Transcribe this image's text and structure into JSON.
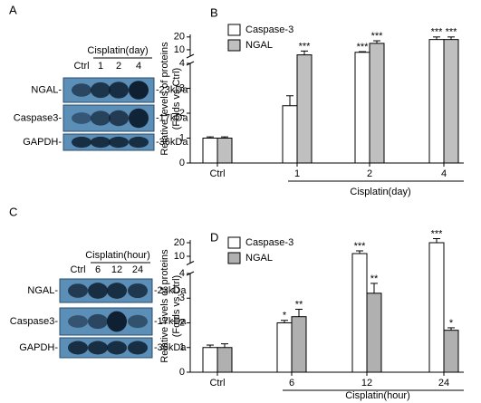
{
  "blots": [
    {
      "letter": "A",
      "treatment": "Cisplatin(day)",
      "lanes": [
        "Ctrl",
        "1",
        "2",
        "4"
      ],
      "rows": [
        {
          "label": "NGAL-",
          "size": "-23kDa"
        },
        {
          "label": "Caspase3-",
          "size": "-17kDa"
        },
        {
          "label": "GAPDH-",
          "size": "-36kDa"
        }
      ]
    },
    {
      "letter": "C",
      "treatment": "Cisplatin(hour)",
      "lanes": [
        "Ctrl",
        "6",
        "12",
        "24"
      ],
      "rows": [
        {
          "label": "NGAL-",
          "size": "-23kDa"
        },
        {
          "label": "Caspase3-",
          "size": "-17kDa"
        },
        {
          "label": "GAPDH-",
          "size": "-36kDa"
        }
      ]
    }
  ],
  "chart_data": [
    {
      "type": "bar",
      "letter": "B",
      "ylabel": [
        "Relative levels of proteins",
        "(Folds vs.Ctrl)"
      ],
      "xlabel": "Cisplatin(day)",
      "categories": [
        "Ctrl",
        "1",
        "2",
        "4"
      ],
      "ylim": [
        0,
        22
      ],
      "ybreak": [
        4,
        5
      ],
      "yticks": [
        0,
        1,
        2,
        3,
        4,
        10,
        20
      ],
      "series": [
        {
          "name": "Caspase-3",
          "color": "#ffffff",
          "values": [
            1.0,
            2.3,
            8,
            18
          ],
          "errors": [
            0.05,
            0.4,
            0.5,
            2
          ],
          "significance": [
            null,
            null,
            "***",
            "***"
          ]
        },
        {
          "name": "NGAL",
          "color": "#c0c0c0",
          "values": [
            1.0,
            6,
            15,
            18
          ],
          "errors": [
            0.05,
            3,
            2,
            2
          ],
          "significance": [
            null,
            "***",
            "***",
            "***"
          ]
        }
      ]
    },
    {
      "type": "bar",
      "letter": "D",
      "ylabel": [
        "Relative levels of proteins",
        "(Folds vs.Ctrl)"
      ],
      "xlabel": "Cisplatin(hour)",
      "categories": [
        "Ctrl",
        "6",
        "12",
        "24"
      ],
      "ylim": [
        0,
        22
      ],
      "ybreak": [
        4,
        5
      ],
      "yticks": [
        0,
        1,
        2,
        3,
        4,
        10,
        20
      ],
      "series": [
        {
          "name": "Caspase-3",
          "color": "#ffffff",
          "values": [
            1.0,
            2.0,
            12,
            20
          ],
          "errors": [
            0.1,
            0.1,
            2,
            3
          ],
          "significance": [
            null,
            "*",
            "***",
            "***"
          ]
        },
        {
          "name": "NGAL",
          "color": "#b0b0b0",
          "values": [
            1.0,
            2.25,
            3.2,
            1.7
          ],
          "errors": [
            0.15,
            0.3,
            0.4,
            0.1
          ],
          "significance": [
            null,
            "**",
            "**",
            "*"
          ]
        }
      ]
    }
  ]
}
